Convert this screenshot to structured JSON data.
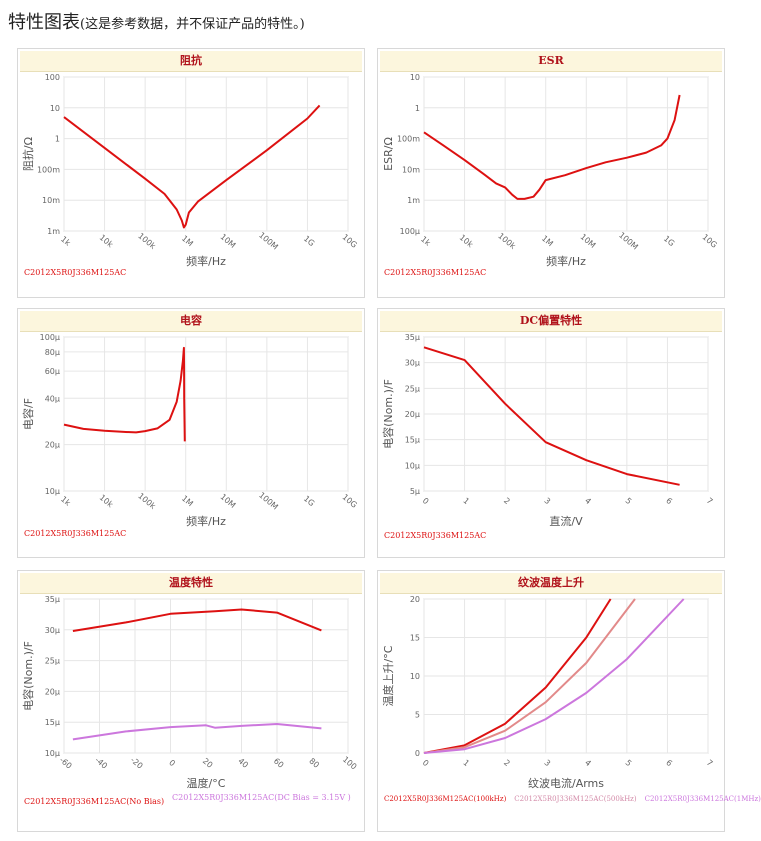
{
  "page": {
    "title": "特性图表",
    "note": "(这是参考数据，并不保证产品的特性。)"
  },
  "chart_data": [
    {
      "id": "impedance",
      "type": "line",
      "title": "阻抗",
      "xlabel": "频率/Hz",
      "ylabel": "阻抗/Ω",
      "x_scale": "log",
      "y_scale": "log",
      "xlim": [
        1000,
        10000000000
      ],
      "ylim": [
        0.001,
        100
      ],
      "x_ticks": [
        1000,
        10000,
        100000,
        1000000,
        10000000,
        100000000,
        1000000000,
        10000000000
      ],
      "x_tick_labels": [
        "1k",
        "10k",
        "100k",
        "1M",
        "10M",
        "100M",
        "1G",
        "10G"
      ],
      "y_ticks": [
        0.001,
        0.01,
        0.1,
        1,
        10,
        100
      ],
      "y_tick_labels": [
        "1m",
        "10m",
        "100m",
        "1",
        "10",
        "100"
      ],
      "series": [
        {
          "color": "#dd1111",
          "x": [
            1000,
            10000,
            100000,
            300000,
            600000,
            800000,
            900000,
            1000000,
            1200000,
            2000000,
            10000000,
            100000000,
            1000000000,
            2000000000
          ],
          "y": [
            5,
            0.5,
            0.05,
            0.016,
            0.005,
            0.0022,
            0.0013,
            0.0016,
            0.004,
            0.009,
            0.045,
            0.42,
            4.5,
            12
          ]
        }
      ],
      "legend": [
        "C2012X5R0J336M125AC"
      ]
    },
    {
      "id": "esr",
      "type": "line",
      "title": "ESR",
      "xlabel": "频率/Hz",
      "ylabel": "ESR/Ω",
      "x_scale": "log",
      "y_scale": "log",
      "xlim": [
        1000,
        10000000000
      ],
      "ylim": [
        0.0001,
        10
      ],
      "x_ticks": [
        1000,
        10000,
        100000,
        1000000,
        10000000,
        100000000,
        1000000000,
        10000000000
      ],
      "x_tick_labels": [
        "1k",
        "10k",
        "100k",
        "1M",
        "10M",
        "100M",
        "1G",
        "10G"
      ],
      "y_ticks": [
        0.0001,
        0.001,
        0.01,
        0.1,
        1,
        10
      ],
      "y_tick_labels": [
        "100μ",
        "1m",
        "10m",
        "100m",
        "1",
        "10"
      ],
      "series": [
        {
          "color": "#dd1111",
          "x": [
            1000,
            3000,
            10000,
            30000,
            60000,
            100000,
            150000,
            200000,
            300000,
            500000,
            700000,
            1000000,
            3000000,
            10000000,
            30000000,
            100000000,
            300000000,
            700000000,
            1000000000,
            1500000000,
            2000000000
          ],
          "y": [
            0.16,
            0.06,
            0.02,
            0.007,
            0.0035,
            0.0026,
            0.0015,
            0.0011,
            0.0011,
            0.0013,
            0.0022,
            0.0045,
            0.0065,
            0.011,
            0.017,
            0.024,
            0.035,
            0.06,
            0.1,
            0.4,
            2.6
          ]
        }
      ],
      "legend": [
        "C2012X5R0J336M125AC"
      ]
    },
    {
      "id": "capacitance",
      "type": "line",
      "title": "电容",
      "xlabel": "频率/Hz",
      "ylabel": "电容/F",
      "x_scale": "log",
      "y_scale": "log",
      "xlim": [
        1000,
        10000000000
      ],
      "ylim": [
        1e-05,
        0.0001
      ],
      "x_ticks": [
        1000,
        10000,
        100000,
        1000000,
        10000000,
        100000000,
        1000000000,
        10000000000
      ],
      "x_tick_labels": [
        "1k",
        "10k",
        "100k",
        "1M",
        "10M",
        "100M",
        "1G",
        "10G"
      ],
      "y_ticks": [
        1e-05,
        2e-05,
        4e-05,
        6e-05,
        8e-05,
        0.0001
      ],
      "y_tick_labels": [
        "10μ",
        "20μ",
        "40μ",
        "60μ",
        "80μ",
        "100μ"
      ],
      "series": [
        {
          "color": "#dd1111",
          "x": [
            1000,
            3000,
            10000,
            30000,
            60000,
            100000,
            200000,
            400000,
            600000,
            750000,
            850000,
            900000,
            910000,
            920000,
            950000
          ],
          "y": [
            2.7e-05,
            2.53e-05,
            2.46e-05,
            2.42e-05,
            2.4e-05,
            2.45e-05,
            2.55e-05,
            2.9e-05,
            3.8e-05,
            5.2e-05,
            7e-05,
            8.5e-05,
            6e-05,
            4e-05,
            2.1e-05
          ]
        }
      ],
      "legend": [
        "C2012X5R0J336M125AC"
      ]
    },
    {
      "id": "dc_bias",
      "type": "line",
      "title": "DC偏置特性",
      "xlabel": "直流/V",
      "ylabel": "电容(Nom.)/F",
      "xlim": [
        0,
        7
      ],
      "ylim": [
        5e-06,
        3.5e-05
      ],
      "x_ticks": [
        0,
        1,
        2,
        3,
        4,
        5,
        6,
        7
      ],
      "x_tick_labels": [
        "0",
        "1",
        "2",
        "3",
        "4",
        "5",
        "6",
        "7"
      ],
      "y_ticks": [
        5e-06,
        1e-05,
        1.5e-05,
        2e-05,
        2.5e-05,
        3e-05,
        3.5e-05
      ],
      "y_tick_labels": [
        "5μ",
        "10μ",
        "15μ",
        "20μ",
        "25μ",
        "30μ",
        "35μ"
      ],
      "series": [
        {
          "color": "#dd1111",
          "x": [
            0,
            1,
            2,
            3,
            4,
            5,
            6.3
          ],
          "y": [
            3.3e-05,
            3.05e-05,
            2.2e-05,
            1.45e-05,
            1.1e-05,
            8.3e-06,
            6.2e-06
          ]
        }
      ],
      "legend": [
        "C2012X5R0J336M125AC"
      ]
    },
    {
      "id": "temperature",
      "type": "line",
      "title": "温度特性",
      "xlabel": "温度/°C",
      "ylabel": "电容(Nom.)/F",
      "xlim": [
        -60,
        100
      ],
      "ylim": [
        1e-05,
        3.5e-05
      ],
      "x_ticks": [
        -60,
        -40,
        -20,
        0,
        20,
        40,
        60,
        80,
        100
      ],
      "x_tick_labels": [
        "-60",
        "-40",
        "-20",
        "0",
        "20",
        "40",
        "60",
        "80",
        "100"
      ],
      "y_ticks": [
        1e-05,
        1.5e-05,
        2e-05,
        2.5e-05,
        3e-05,
        3.5e-05
      ],
      "y_tick_labels": [
        "10μ",
        "15μ",
        "20μ",
        "25μ",
        "30μ",
        "35μ"
      ],
      "series": [
        {
          "name": "C2012X5R0J336M125AC(No Bias)",
          "color": "#dd1111",
          "x": [
            -55,
            -25,
            0,
            25,
            40,
            60,
            85
          ],
          "y": [
            2.98e-05,
            3.12e-05,
            3.26e-05,
            3.3e-05,
            3.33e-05,
            3.28e-05,
            2.99e-05
          ]
        },
        {
          "name": "C2012X5R0J336M125AC(DC Bias = 3.15V)",
          "color": "#cc77dd",
          "x": [
            -55,
            -25,
            0,
            20,
            25,
            40,
            60,
            85
          ],
          "y": [
            1.22e-05,
            1.35e-05,
            1.42e-05,
            1.45e-05,
            1.41e-05,
            1.44e-05,
            1.47e-05,
            1.4e-05
          ]
        }
      ],
      "legend": [
        "C2012X5R0J336M125AC(No Bias)",
        "C2012X5R0J336M125AC(DC Bias = 3.15V )"
      ]
    },
    {
      "id": "ripple",
      "type": "line",
      "title": "纹波温度上升",
      "xlabel": "纹波电流/Arms",
      "ylabel": "温度上升/°C",
      "xlim": [
        0,
        7
      ],
      "ylim": [
        0,
        20
      ],
      "x_ticks": [
        0,
        1,
        2,
        3,
        4,
        5,
        6,
        7
      ],
      "x_tick_labels": [
        "0",
        "1",
        "2",
        "3",
        "4",
        "5",
        "6",
        "7"
      ],
      "y_ticks": [
        0,
        5,
        10,
        15,
        20
      ],
      "y_tick_labels": [
        "0",
        "5",
        "10",
        "15",
        "20"
      ],
      "series": [
        {
          "name": "C2012X5R0J336M125AC(100kHz)",
          "color": "#dd1111",
          "x": [
            0,
            1,
            2,
            3,
            4,
            4.6
          ],
          "y": [
            0,
            1,
            3.8,
            8.5,
            15,
            20
          ]
        },
        {
          "name": "C2012X5R0J336M125AC(500kHz)",
          "color": "#e28a8a",
          "x": [
            0,
            1,
            2,
            3,
            4,
            5.2
          ],
          "y": [
            0,
            0.75,
            2.9,
            6.6,
            11.7,
            20
          ]
        },
        {
          "name": "C2012X5R0J336M125AC(1MHz)",
          "color": "#cc77dd",
          "x": [
            0,
            1,
            2,
            3,
            4,
            5,
            6.4
          ],
          "y": [
            0,
            0.5,
            1.95,
            4.4,
            7.8,
            12.2,
            20
          ]
        }
      ],
      "legend": [
        "C2012X5R0J336M125AC(100kHz)",
        "C2012X5R0J336M125AC(500kHz)",
        "C2012X5R0J336M125AC(1MHz)"
      ]
    }
  ]
}
